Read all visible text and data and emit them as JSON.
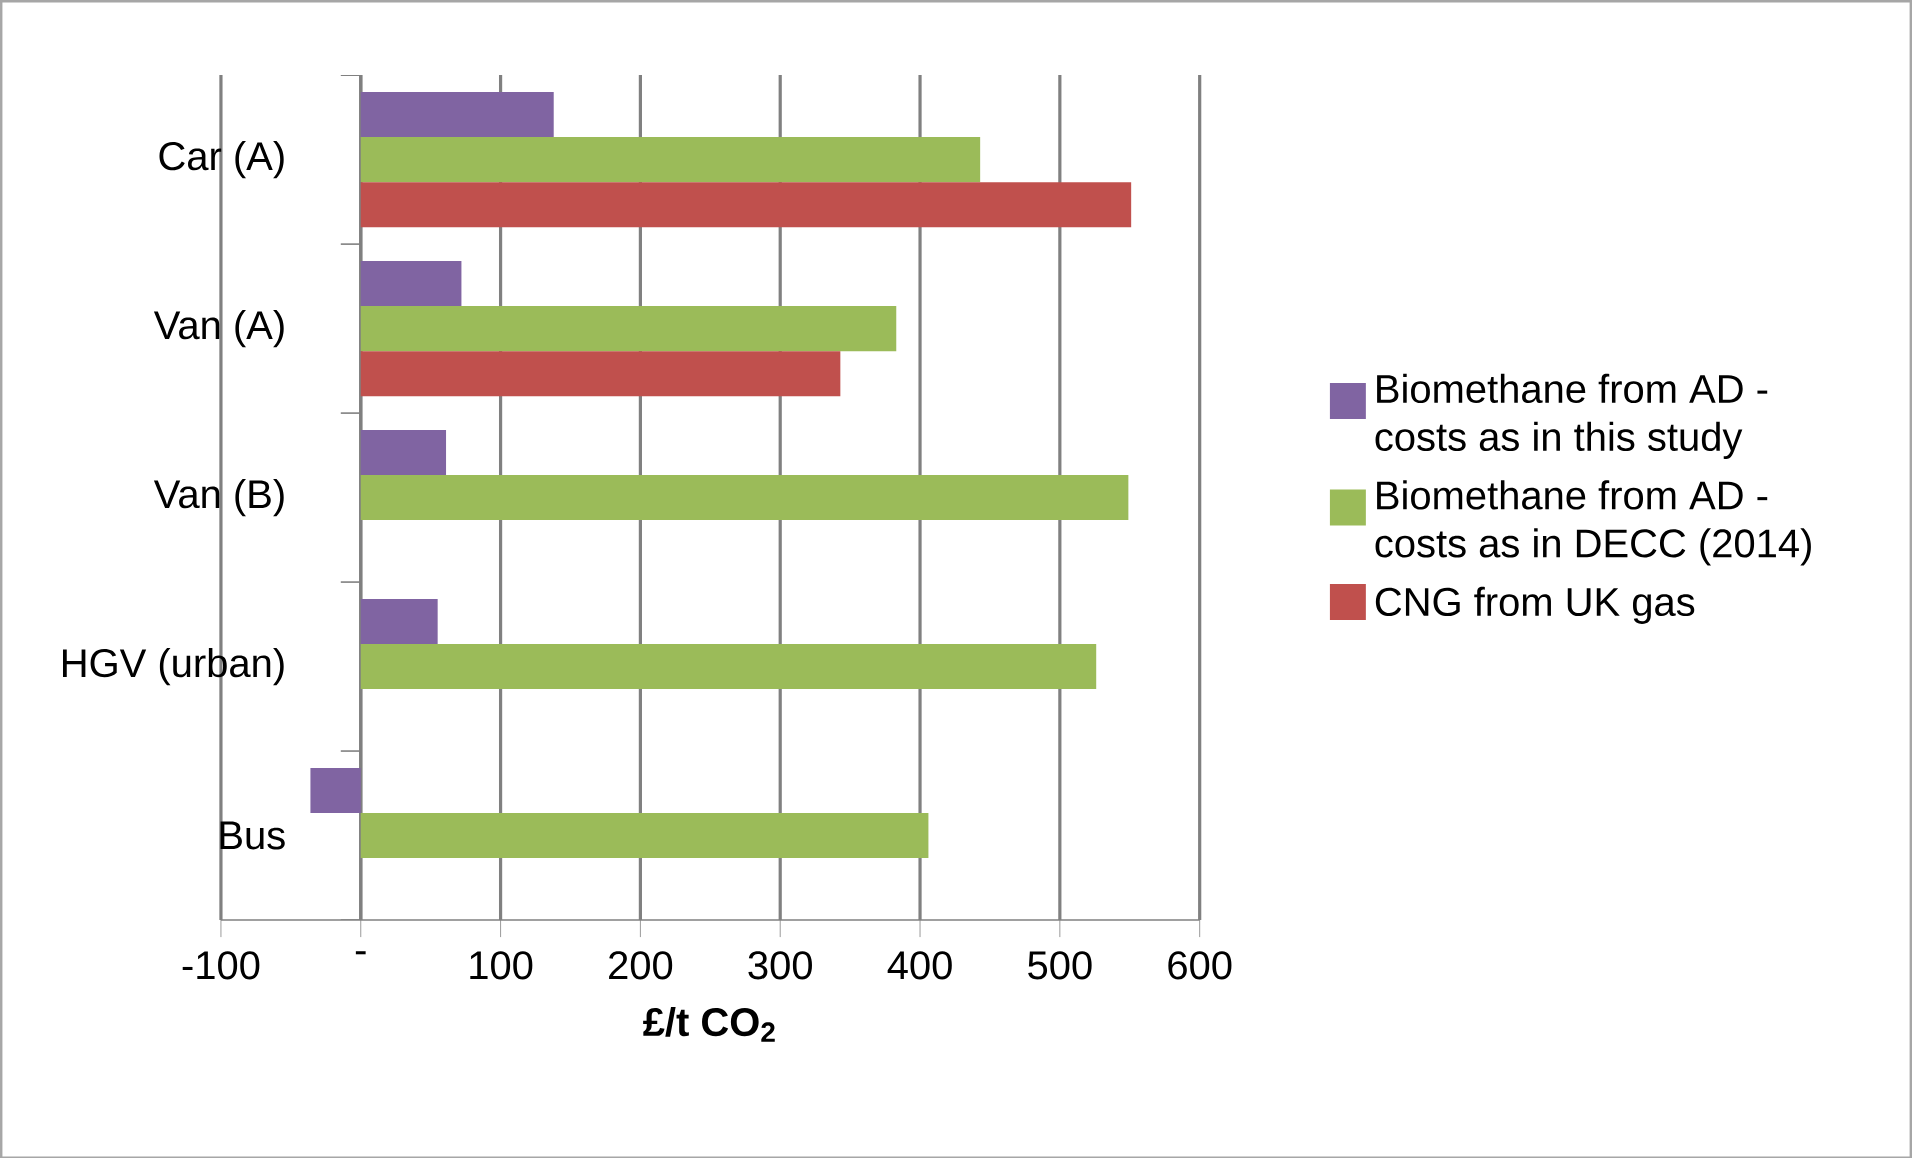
{
  "chart_data": {
    "type": "bar",
    "orientation": "horizontal",
    "xlabel": "£/t CO$_{2}$",
    "categories": [
      "Car (A)",
      "Van (A)",
      "Van (B)",
      "HGV (urban)",
      "Bus"
    ],
    "series": [
      {
        "name": "Biomethane from AD - costs as in this study",
        "color": "#8064a2",
        "values": [
          138,
          72,
          61,
          55,
          -36
        ]
      },
      {
        "name": "Biomethane from AD - costs as in DECC (2014)",
        "color": "#9bbb59",
        "values": [
          443,
          383,
          549,
          526,
          406
        ]
      },
      {
        "name": "CNG from UK gas",
        "color": "#c0504d",
        "values": [
          551,
          343,
          null,
          null,
          null
        ]
      }
    ],
    "xlim": [
      -100,
      600
    ],
    "xticks": [
      -100,
      {
        "value": 0,
        "label": "-"
      },
      100,
      200,
      300,
      400,
      500,
      600
    ],
    "grid": "x",
    "legend": "right"
  }
}
